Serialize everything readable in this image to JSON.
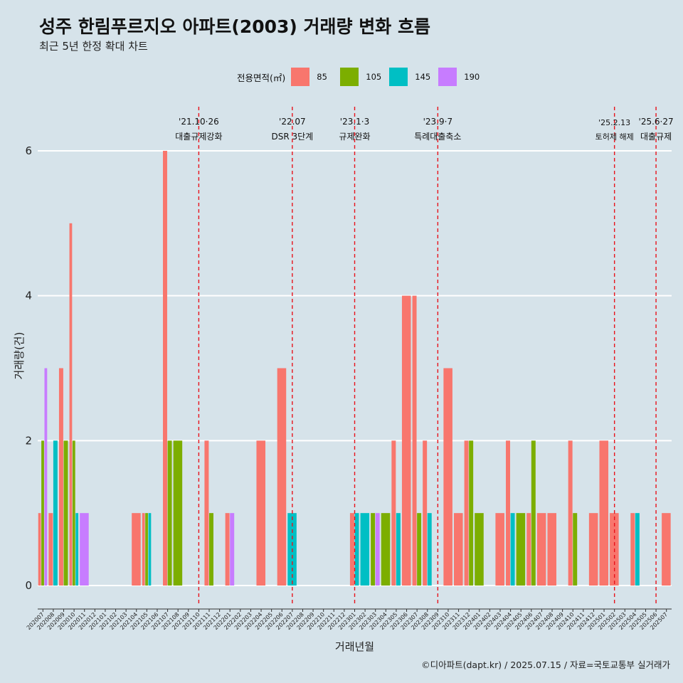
{
  "title": "성주 한림푸르지오 아파트(2003) 거래량 변화 흐름",
  "subtitle": "최근 5년 한정 확대 차트",
  "caption": "©디아파트(dapt.kr) / 2025.07.15 / 자료=국토교통부 실거래가",
  "legend": {
    "title": "전용면적(㎡)",
    "items": [
      {
        "label": "85",
        "color": "#f8766d"
      },
      {
        "label": "105",
        "color": "#7cae00"
      },
      {
        "label": "145",
        "color": "#00bfc4"
      },
      {
        "label": "190",
        "color": "#c77cff"
      }
    ]
  },
  "chart_data": {
    "type": "bar",
    "xlabel": "거래년월",
    "ylabel": "거래량(건)",
    "ylim": [
      0,
      6.5
    ],
    "yticks": [
      0,
      2,
      4,
      6
    ],
    "grid": true,
    "legend_position": "top",
    "categories": [
      "202007",
      "202008",
      "202009",
      "202010",
      "202011",
      "202012",
      "202101",
      "202102",
      "202103",
      "202104",
      "202105",
      "202106",
      "202107",
      "202108",
      "202109",
      "202110",
      "202111",
      "202112",
      "202201",
      "202202",
      "202203",
      "202204",
      "202205",
      "202206",
      "202207",
      "202208",
      "202209",
      "202210",
      "202211",
      "202212",
      "202301",
      "202302",
      "202303",
      "202304",
      "202305",
      "202306",
      "202307",
      "202308",
      "202309",
      "202310",
      "202311",
      "202312",
      "202401",
      "202402",
      "202403",
      "202404",
      "202405",
      "202406",
      "202407",
      "202408",
      "202409",
      "202410",
      "202411",
      "202412",
      "202501",
      "202502",
      "202503",
      "202504",
      "202505",
      "202506",
      "202507"
    ],
    "series": [
      {
        "name": "85",
        "color": "#f8766d",
        "values": [
          1,
          1,
          3,
          5,
          0,
          0,
          0,
          0,
          0,
          1,
          1,
          0,
          6,
          0,
          0,
          0,
          2,
          0,
          1,
          0,
          0,
          2,
          0,
          3,
          0,
          0,
          0,
          0,
          0,
          0,
          1,
          0,
          0,
          0,
          2,
          4,
          4,
          2,
          0,
          3,
          1,
          2,
          0,
          0,
          1,
          2,
          0,
          1,
          1,
          1,
          0,
          2,
          0,
          1,
          2,
          1,
          0,
          1,
          0,
          0,
          1
        ]
      },
      {
        "name": "105",
        "color": "#7cae00",
        "values": [
          2,
          0,
          2,
          2,
          0,
          0,
          0,
          0,
          0,
          0,
          1,
          0,
          2,
          2,
          0,
          0,
          1,
          0,
          0,
          0,
          0,
          0,
          0,
          0,
          0,
          0,
          0,
          0,
          0,
          0,
          0,
          0,
          1,
          1,
          0,
          0,
          1,
          0,
          0,
          0,
          0,
          2,
          1,
          0,
          0,
          0,
          1,
          2,
          0,
          0,
          0,
          1,
          0,
          0,
          0,
          0,
          0,
          0,
          0,
          0,
          0
        ]
      },
      {
        "name": "145",
        "color": "#00bfc4",
        "values": [
          0,
          2,
          0,
          1,
          0,
          0,
          0,
          0,
          0,
          0,
          1,
          0,
          0,
          0,
          0,
          0,
          0,
          0,
          0,
          0,
          0,
          0,
          0,
          0,
          1,
          0,
          0,
          0,
          0,
          0,
          1,
          1,
          0,
          0,
          1,
          0,
          0,
          1,
          0,
          0,
          0,
          0,
          0,
          0,
          0,
          1,
          0,
          0,
          0,
          0,
          0,
          0,
          0,
          0,
          0,
          0,
          0,
          1,
          0,
          0,
          0
        ]
      },
      {
        "name": "190",
        "color": "#c77cff",
        "values": [
          3,
          0,
          0,
          0,
          1,
          0,
          0,
          0,
          0,
          0,
          0,
          0,
          0,
          0,
          0,
          0,
          0,
          0,
          1,
          0,
          0,
          0,
          0,
          0,
          0,
          0,
          0,
          0,
          0,
          0,
          0,
          0,
          1,
          0,
          0,
          0,
          0,
          0,
          0,
          0,
          0,
          0,
          0,
          0,
          0,
          0,
          0,
          0,
          0,
          0,
          0,
          0,
          0,
          0,
          0,
          0,
          0,
          0,
          0,
          0,
          0
        ]
      }
    ],
    "annotations": [
      {
        "month": "202110",
        "date": "'21.10·26",
        "label": "대출규제강화"
      },
      {
        "month": "202207",
        "date": "'22.07",
        "label": "DSR 3단계"
      },
      {
        "month": "202301",
        "date": "'23.1·3",
        "label": "규제완화"
      },
      {
        "month": "202309",
        "date": "'23.9·7",
        "label": "특례대출축소"
      },
      {
        "month": "202502",
        "date": "'25.2.13",
        "label": "토허제 해제"
      },
      {
        "month": "202506",
        "date": "'25.6·27",
        "label": "대출규제"
      }
    ]
  }
}
